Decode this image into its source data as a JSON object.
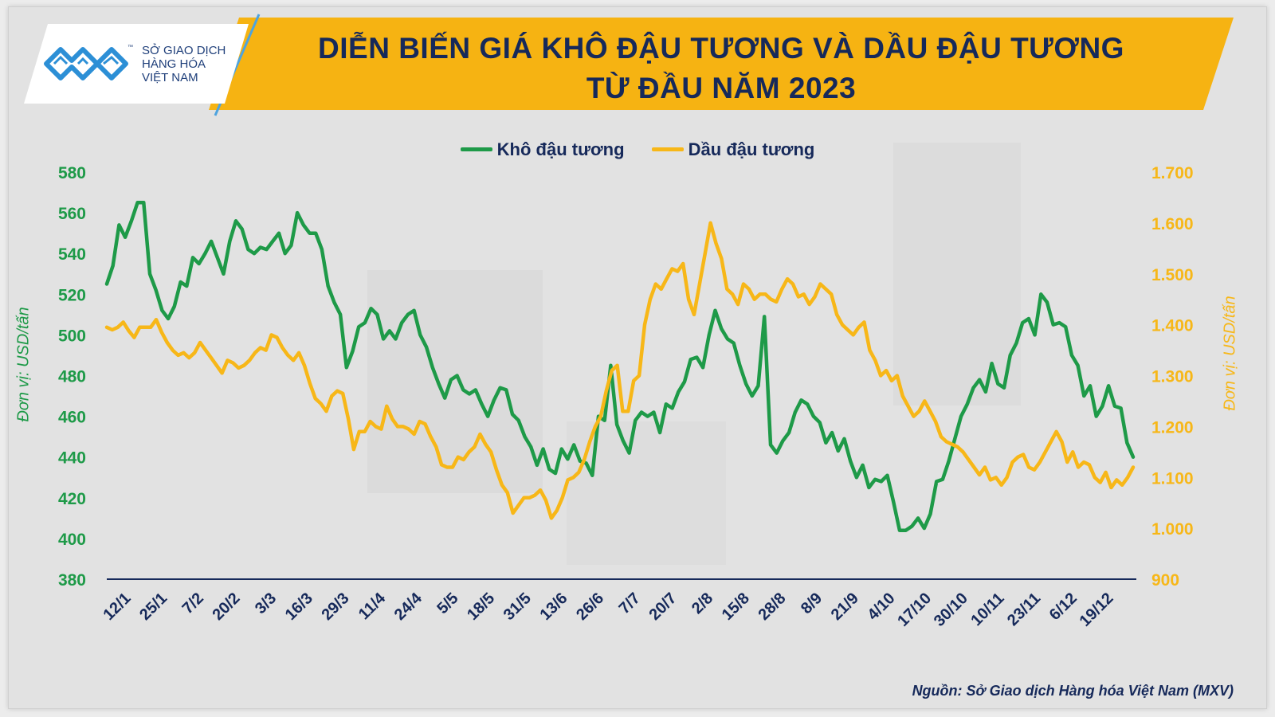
{
  "header": {
    "logo_lines": [
      "SỞ GIAO DỊCH",
      "HÀNG HÓA",
      "VIỆT NAM"
    ],
    "logo_tm": "™",
    "title_line1": "DIỄN BIẾN GIÁ KHÔ ĐẬU TƯƠNG VÀ DẦU ĐẬU TƯƠNG",
    "title_line2": "TỪ ĐẦU NĂM 2023"
  },
  "footer": {
    "source": "Nguồn: Sở Giao dịch Hàng hóa Việt Nam (MXV)"
  },
  "colors": {
    "green": "#1e9a48",
    "yellow": "#f7b718",
    "navy": "#16295a",
    "banner": "#f6b312"
  },
  "chart_data": {
    "type": "line",
    "legend_position": "top-center",
    "grid": false,
    "x_tick_labels": [
      "12/1",
      "25/1",
      "7/2",
      "20/2",
      "3/3",
      "16/3",
      "29/3",
      "11/4",
      "24/4",
      "5/5",
      "18/5",
      "31/5",
      "13/6",
      "26/6",
      "7/7",
      "20/7",
      "2/8",
      "15/8",
      "28/8",
      "8/9",
      "21/9",
      "4/10",
      "17/10",
      "30/10",
      "10/11",
      "23/11",
      "6/12",
      "19/12"
    ],
    "y_left": {
      "label": "Đơn vị: USD/tấn",
      "range": [
        380,
        580
      ],
      "ticks": [
        "380",
        "400",
        "420",
        "440",
        "460",
        "480",
        "500",
        "520",
        "540",
        "560",
        "580"
      ]
    },
    "y_right": {
      "label": "Đơn vị: USD/tấn",
      "range": [
        900,
        1700
      ],
      "ticks": [
        "900",
        "1.000",
        "1.100",
        "1.200",
        "1.300",
        "1.400",
        "1.500",
        "1.600",
        "1.700"
      ]
    },
    "series": [
      {
        "name": "Khô đậu tương",
        "axis": "left",
        "color": "#1e9a48",
        "values": [
          525,
          534,
          554,
          548,
          556,
          565,
          565,
          530,
          522,
          512,
          508,
          514,
          526,
          524,
          538,
          535,
          540,
          546,
          538,
          530,
          546,
          556,
          552,
          542,
          540,
          543,
          542,
          546,
          550,
          540,
          544,
          560,
          554,
          550,
          550,
          542,
          524,
          516,
          510,
          484,
          492,
          504,
          506,
          513,
          510,
          498,
          502,
          498,
          506,
          510,
          512,
          500,
          494,
          484,
          476,
          469,
          478,
          480,
          473,
          471,
          473,
          466,
          460,
          468,
          474,
          473,
          461,
          458,
          450,
          445,
          436,
          444,
          434,
          432,
          444,
          439,
          446,
          438,
          437,
          431,
          460,
          458,
          485,
          456,
          448,
          442,
          458,
          462,
          460,
          462,
          452,
          466,
          464,
          472,
          477,
          488,
          489,
          484,
          500,
          512,
          503,
          498,
          496,
          485,
          476,
          470,
          475,
          509,
          446,
          442,
          448,
          452,
          462,
          468,
          466,
          460,
          457,
          447,
          452,
          443,
          449,
          438,
          430,
          436,
          425,
          429,
          428,
          431,
          418,
          404,
          404,
          406,
          410,
          405,
          412,
          428,
          429,
          438,
          449,
          460,
          466,
          474,
          478,
          472,
          486,
          476,
          474,
          490,
          496,
          506,
          508,
          500,
          520,
          516,
          505,
          506,
          504,
          490,
          485,
          470,
          475,
          460,
          465,
          475,
          465,
          464,
          447,
          440
        ]
      },
      {
        "name": "Dầu đậu tương",
        "axis": "right",
        "color": "#f7b718",
        "values": [
          1395,
          1390,
          1395,
          1405,
          1388,
          1375,
          1395,
          1395,
          1395,
          1410,
          1385,
          1365,
          1350,
          1340,
          1345,
          1335,
          1345,
          1365,
          1350,
          1335,
          1320,
          1305,
          1330,
          1325,
          1315,
          1320,
          1330,
          1345,
          1355,
          1350,
          1380,
          1375,
          1355,
          1340,
          1330,
          1345,
          1320,
          1285,
          1255,
          1245,
          1230,
          1260,
          1270,
          1265,
          1215,
          1155,
          1190,
          1190,
          1210,
          1200,
          1195,
          1240,
          1215,
          1200,
          1200,
          1195,
          1185,
          1210,
          1205,
          1180,
          1160,
          1125,
          1120,
          1120,
          1140,
          1135,
          1150,
          1160,
          1185,
          1165,
          1150,
          1115,
          1085,
          1070,
          1030,
          1045,
          1060,
          1060,
          1065,
          1075,
          1055,
          1020,
          1035,
          1060,
          1095,
          1100,
          1110,
          1135,
          1170,
          1200,
          1220,
          1270,
          1310,
          1320,
          1230,
          1230,
          1290,
          1300,
          1400,
          1450,
          1480,
          1470,
          1490,
          1510,
          1505,
          1520,
          1450,
          1420,
          1480,
          1540,
          1600,
          1560,
          1530,
          1470,
          1460,
          1440,
          1480,
          1470,
          1450,
          1460,
          1460,
          1450,
          1445,
          1470,
          1490,
          1480,
          1455,
          1460,
          1440,
          1455,
          1480,
          1470,
          1460,
          1420,
          1400,
          1390,
          1380,
          1395,
          1405,
          1350,
          1330,
          1300,
          1310,
          1290,
          1300,
          1260,
          1240,
          1220,
          1230,
          1250,
          1230,
          1210,
          1180,
          1170,
          1165,
          1160,
          1150,
          1135,
          1120,
          1105,
          1120,
          1095,
          1100,
          1085,
          1100,
          1130,
          1140,
          1145,
          1120,
          1115,
          1130,
          1150,
          1170,
          1190,
          1170,
          1130,
          1150,
          1120,
          1130,
          1125,
          1100,
          1090,
          1110,
          1080,
          1095,
          1085,
          1100,
          1120
        ]
      }
    ]
  }
}
